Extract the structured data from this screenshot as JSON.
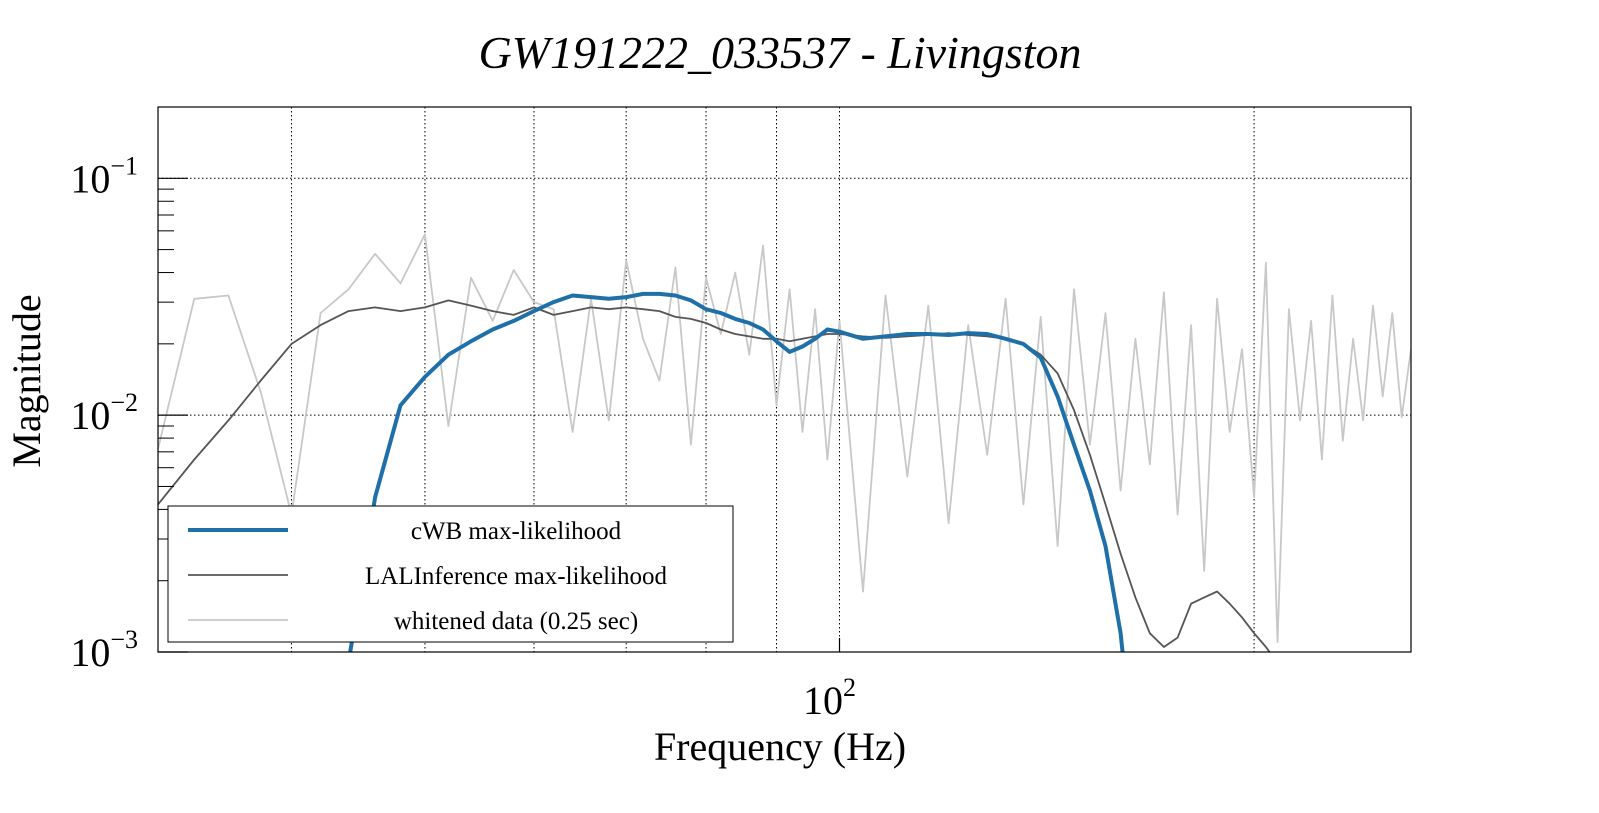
{
  "chart_data": {
    "type": "line",
    "title": "GW191222_033537 - Livingston",
    "xlabel": "Frequency (Hz)",
    "ylabel": "Magnitude",
    "xscale": "log",
    "yscale": "log",
    "xlim": [
      32,
      260
    ],
    "ylim": [
      0.001,
      0.2
    ],
    "x_ticks": [
      {
        "value": 100,
        "base": "10",
        "exp": "2"
      }
    ],
    "x_minor_gridlines": [
      40,
      50,
      60,
      70,
      80,
      90,
      200
    ],
    "y_ticks": [
      {
        "value": 0.1,
        "base": "10",
        "exp": "−1"
      },
      {
        "value": 0.01,
        "base": "10",
        "exp": "−2"
      },
      {
        "value": 0.001,
        "base": "10",
        "exp": "−3"
      }
    ],
    "grid": true,
    "legend_position": "lower-left",
    "series": [
      {
        "name": "cWB max-likelihood",
        "color": "#1f6fa8",
        "width": 4,
        "x": [
          44,
          46,
          48,
          50,
          52,
          54,
          56,
          58,
          60,
          62,
          64,
          66,
          68,
          70,
          72,
          74,
          76,
          78,
          80,
          82,
          84,
          86,
          88,
          90,
          92,
          94,
          96,
          98,
          100,
          104,
          108,
          112,
          116,
          120,
          124,
          128,
          132,
          136,
          140,
          144,
          148,
          152,
          156,
          160,
          164,
          168,
          172,
          176,
          180,
          184,
          188
        ],
        "y": [
          0.0009,
          0.0045,
          0.011,
          0.0145,
          0.018,
          0.0205,
          0.023,
          0.025,
          0.0275,
          0.03,
          0.032,
          0.0315,
          0.031,
          0.0315,
          0.0325,
          0.0325,
          0.032,
          0.0305,
          0.028,
          0.027,
          0.0255,
          0.0245,
          0.023,
          0.0205,
          0.0185,
          0.0195,
          0.021,
          0.023,
          0.0225,
          0.021,
          0.0215,
          0.022,
          0.022,
          0.0218,
          0.0222,
          0.022,
          0.021,
          0.02,
          0.0175,
          0.012,
          0.0075,
          0.0048,
          0.0028,
          0.0012,
          0.0003,
          null,
          null,
          null,
          null,
          null,
          null
        ]
      },
      {
        "name": "LALInference max-likelihood",
        "color": "#555555",
        "width": 1.8,
        "x": [
          32,
          34,
          36,
          38,
          40,
          42,
          44,
          46,
          48,
          50,
          52,
          54,
          56,
          58,
          60,
          62,
          64,
          66,
          68,
          70,
          72,
          74,
          76,
          78,
          80,
          82,
          84,
          86,
          88,
          90,
          92,
          94,
          96,
          98,
          100,
          104,
          108,
          112,
          116,
          120,
          124,
          128,
          132,
          136,
          140,
          144,
          148,
          152,
          156,
          160,
          164,
          168,
          172,
          176,
          180,
          184,
          188,
          192,
          196,
          200,
          204,
          208
        ],
        "y": [
          0.0042,
          0.0065,
          0.0095,
          0.014,
          0.02,
          0.024,
          0.0275,
          0.0285,
          0.0275,
          0.0285,
          0.0305,
          0.029,
          0.0275,
          0.0265,
          0.0285,
          0.0265,
          0.0275,
          0.0285,
          0.028,
          0.0285,
          0.028,
          0.0275,
          0.026,
          0.0255,
          0.0245,
          0.023,
          0.022,
          0.0215,
          0.021,
          0.021,
          0.0205,
          0.021,
          0.0215,
          0.022,
          0.022,
          0.0215,
          0.0212,
          0.0215,
          0.0218,
          0.0222,
          0.0218,
          0.0215,
          0.021,
          0.02,
          0.018,
          0.015,
          0.0105,
          0.0068,
          0.0042,
          0.0026,
          0.0017,
          0.0012,
          0.00105,
          0.00115,
          0.0016,
          0.0017,
          0.0018,
          0.0016,
          0.0014,
          0.0012,
          0.00105,
          0.0009
        ]
      },
      {
        "name": "whitened data (0.25 sec)",
        "color": "#c8c8c8",
        "width": 1.8,
        "x": [
          32,
          34,
          36,
          38,
          40,
          42,
          44,
          46,
          48,
          50,
          52,
          54,
          56,
          58,
          60,
          62,
          64,
          66,
          68,
          70,
          72,
          74,
          76,
          78,
          80,
          82,
          84,
          86,
          88,
          90,
          92,
          94,
          96,
          98,
          100,
          104,
          108,
          112,
          116,
          120,
          124,
          128,
          132,
          136,
          140,
          144,
          148,
          152,
          156,
          160,
          164,
          168,
          172,
          176,
          180,
          184,
          188,
          192,
          196,
          200,
          204,
          208,
          212,
          216,
          220,
          224,
          228,
          232,
          236,
          240,
          244,
          248,
          252,
          256,
          260
        ],
        "y": [
          0.0072,
          0.031,
          0.032,
          0.0125,
          0.0038,
          0.027,
          0.034,
          0.048,
          0.036,
          0.058,
          0.009,
          0.038,
          0.025,
          0.041,
          0.03,
          0.028,
          0.0085,
          0.031,
          0.0095,
          0.045,
          0.021,
          0.014,
          0.042,
          0.0075,
          0.038,
          0.022,
          0.04,
          0.018,
          0.052,
          0.011,
          0.034,
          0.0085,
          0.028,
          0.0065,
          0.025,
          0.0018,
          0.032,
          0.0055,
          0.029,
          0.0035,
          0.024,
          0.0068,
          0.031,
          0.0042,
          0.026,
          0.0028,
          0.034,
          0.0075,
          0.027,
          0.0048,
          0.021,
          0.0062,
          0.033,
          0.0038,
          0.024,
          0.0022,
          0.031,
          0.0085,
          0.019,
          0.0045,
          0.044,
          0.0011,
          0.028,
          0.0095,
          0.025,
          0.0065,
          0.032,
          0.0078,
          0.021,
          0.0095,
          0.029,
          0.012,
          0.027,
          0.0098,
          0.019
        ]
      }
    ]
  }
}
